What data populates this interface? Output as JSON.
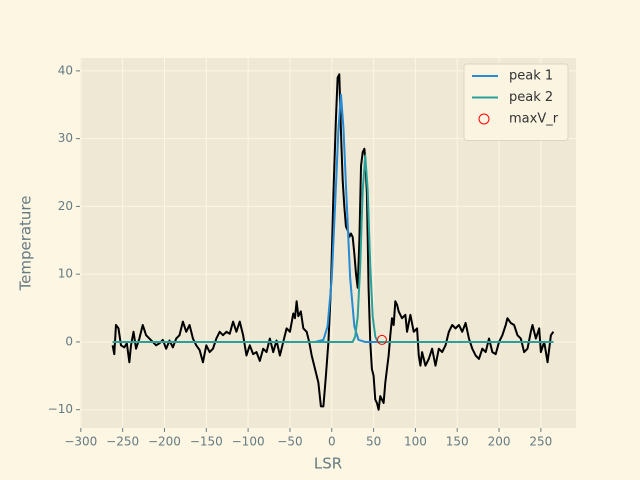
{
  "chart_data": {
    "type": "line",
    "xlabel": "LSR",
    "ylabel": "Temperature",
    "xlim": [
      -301,
      292
    ],
    "ylim": [
      -12.7,
      41.9
    ],
    "xticks": [
      {
        "value": -300,
        "label": "−300"
      },
      {
        "value": -250,
        "label": "−250"
      },
      {
        "value": -200,
        "label": "−200"
      },
      {
        "value": -150,
        "label": "−150"
      },
      {
        "value": -100,
        "label": "−100"
      },
      {
        "value": -50,
        "label": "−50"
      },
      0,
      50,
      100,
      150,
      200,
      250
    ],
    "yticks": [
      {
        "value": -10,
        "label": "−10"
      },
      0,
      10,
      20,
      30,
      40
    ],
    "grid": true,
    "legend": "upper right",
    "series": [
      {
        "type": "line",
        "color": "#000000",
        "x": [
          -262,
          -260,
          -258,
          -255,
          -252,
          -248,
          -245,
          -242,
          -240,
          -237,
          -234,
          -230,
          -226,
          -222,
          -218,
          -214,
          -210,
          -206,
          -202,
          -198,
          -194,
          -190,
          -186,
          -182,
          -178,
          -174,
          -170,
          -166,
          -162,
          -158,
          -154,
          -150,
          -146,
          -142,
          -138,
          -134,
          -130,
          -126,
          -122,
          -118,
          -114,
          -110,
          -106,
          -102,
          -98,
          -94,
          -90,
          -86,
          -82,
          -78,
          -74,
          -70,
          -66,
          -62,
          -58,
          -54,
          -50,
          -46,
          -44,
          -42,
          -40,
          -37,
          -34,
          -30,
          -27,
          -24,
          -20,
          -16,
          -13,
          -10,
          -7,
          -4,
          -1,
          2,
          5,
          7,
          9,
          11,
          13,
          15,
          17,
          19,
          21,
          23,
          25,
          27,
          29,
          31,
          33,
          35,
          37,
          39,
          40,
          42,
          44,
          46,
          48,
          50,
          52,
          54,
          56,
          58,
          60,
          62,
          64,
          66,
          68,
          70,
          72,
          74,
          76,
          78,
          80,
          84,
          88,
          90,
          94,
          98,
          102,
          104,
          106,
          108,
          112,
          116,
          120,
          124,
          128,
          132,
          136,
          140,
          144,
          148,
          152,
          156,
          160,
          164,
          168,
          172,
          176,
          180,
          184,
          188,
          192,
          196,
          200,
          204,
          208,
          210,
          214,
          218,
          222,
          226,
          230,
          234,
          238,
          240,
          244,
          248,
          250,
          254,
          258,
          262,
          265
        ],
        "values": [
          -0.5,
          -1.8,
          2.5,
          2,
          -0.5,
          -0.8,
          -0.2,
          -3,
          -0.5,
          1.5,
          -1,
          0.5,
          2.5,
          1,
          0.5,
          0,
          -0.5,
          -0.2,
          0.3,
          -1,
          0.2,
          -0.8,
          0.5,
          1,
          3,
          1.5,
          2.5,
          0.5,
          -0.5,
          -1.2,
          -3,
          -0.5,
          -1.5,
          -1,
          0.5,
          1.5,
          1,
          1.5,
          1.2,
          3,
          1.5,
          3,
          1,
          -2,
          -0.5,
          -1.8,
          -1.5,
          -2.8,
          -1,
          -1.5,
          0.5,
          -1.5,
          0.2,
          -2,
          0,
          2,
          1.5,
          4.2,
          3.5,
          6,
          3.8,
          4.5,
          2,
          1.5,
          0,
          -2,
          -4,
          -6,
          -9.5,
          -9.5,
          -5,
          0,
          8,
          22,
          33,
          39,
          39.5,
          31,
          24,
          20,
          17,
          16.5,
          15.5,
          16,
          15.5,
          13,
          10,
          8,
          15,
          26,
          28,
          28.5,
          27,
          22,
          8,
          0,
          -4,
          -5,
          -8.5,
          -9,
          -10,
          -8,
          -8.5,
          -9,
          -6,
          -4,
          -2,
          1,
          3.5,
          2.5,
          6,
          5.5,
          4.5,
          3.5,
          4,
          1.5,
          4,
          1.5,
          2,
          -2,
          -3.5,
          -1.5,
          -3.5,
          -2.5,
          -1,
          -3.5,
          -1,
          -1.5,
          -0.5,
          1.5,
          2.5,
          2,
          2.5,
          1.5,
          2.8,
          0.5,
          -1,
          -2,
          -2.5,
          -1,
          -1.5,
          0.5,
          -1.5,
          -1.8,
          0,
          1,
          2.5,
          3.5,
          2.8,
          2.5,
          1,
          0.5,
          -1.5,
          -1,
          1.5,
          2.5,
          0.5,
          2,
          -1.5,
          0,
          -3,
          1,
          1.5
        ]
      },
      {
        "type": "line",
        "name": "peak 1",
        "color": "#268bd2",
        "x": [
          -262,
          -20,
          -10,
          -5,
          0,
          5,
          8,
          11,
          14,
          17,
          22,
          27,
          32,
          40,
          265
        ],
        "values": [
          0,
          0,
          0.3,
          2.3,
          9.4,
          23,
          31.5,
          36.5,
          31.5,
          23,
          9.4,
          2.3,
          0.3,
          0,
          0
        ]
      },
      {
        "type": "line",
        "name": "peak 2",
        "color": "#2aa198",
        "x": [
          -262,
          25,
          28,
          31,
          34,
          37,
          40,
          43,
          46,
          49,
          52,
          55,
          265
        ],
        "values": [
          0,
          0,
          0.8,
          3.7,
          11.2,
          22.3,
          27.5,
          22.3,
          11.2,
          3.7,
          0.8,
          0,
          0
        ]
      },
      {
        "type": "scatter",
        "name": "maxV_r",
        "color": "#ff0000",
        "x": [
          60
        ],
        "values": [
          0.3
        ]
      }
    ]
  }
}
